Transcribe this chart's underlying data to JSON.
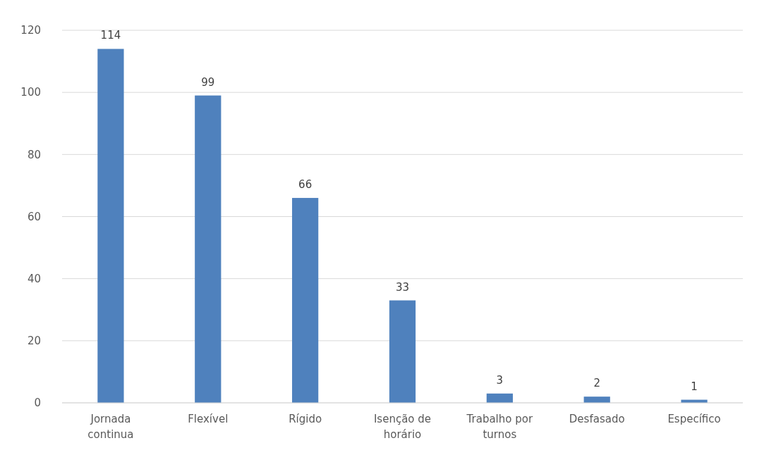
{
  "chart_data": {
    "type": "bar",
    "categories": [
      "Jornada continua",
      "Flexível",
      "Rígido",
      "Isenção de horário",
      "Trabalho por turnos",
      "Desfasado",
      "Específico"
    ],
    "values": [
      114,
      99,
      66,
      33,
      3,
      2,
      1
    ],
    "color": "#4f81bd",
    "ylim": [
      0,
      120
    ],
    "yticks": [
      0,
      20,
      40,
      60,
      80,
      100,
      120
    ],
    "grid": "y",
    "data_labels": true
  }
}
